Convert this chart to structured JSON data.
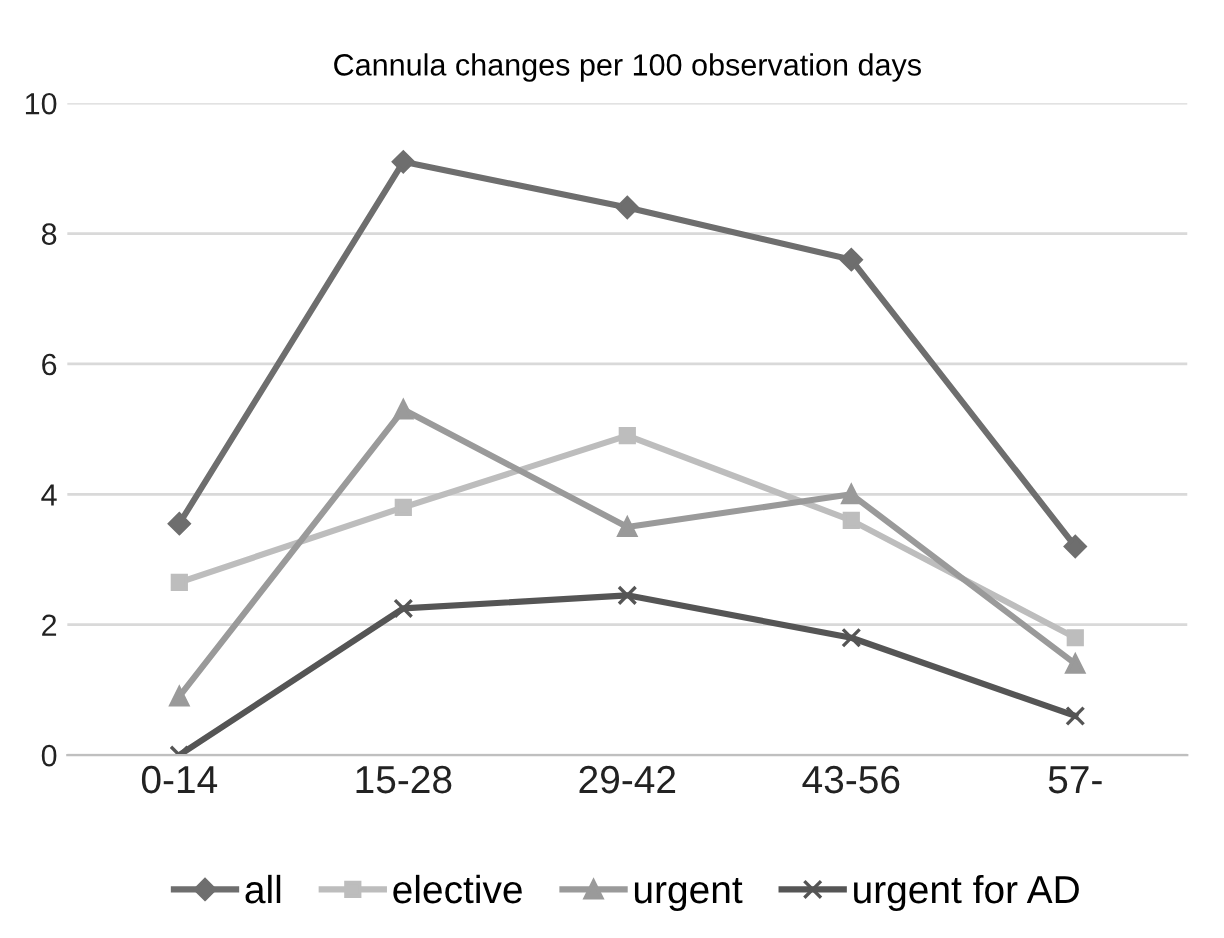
{
  "chart_data": {
    "type": "line",
    "title": "Cannula changes per 100 observation days",
    "categories": [
      "0-14",
      "15-28",
      "29-42",
      "43-56",
      "57-"
    ],
    "series": [
      {
        "name": "all",
        "color": "#6e6e6e",
        "marker": "diamond",
        "values": [
          3.55,
          9.1,
          8.4,
          7.6,
          3.2
        ]
      },
      {
        "name": "elective",
        "color": "#bdbdbd",
        "marker": "square",
        "values": [
          2.65,
          3.8,
          4.9,
          3.6,
          1.8
        ]
      },
      {
        "name": "urgent",
        "color": "#9a9a9a",
        "marker": "triangle",
        "values": [
          0.9,
          5.3,
          3.5,
          4.0,
          1.4
        ]
      },
      {
        "name": "urgent for AD",
        "color": "#555555",
        "marker": "cross",
        "values": [
          0,
          2.25,
          2.45,
          1.8,
          0.6
        ]
      }
    ],
    "ylim": [
      0,
      10
    ],
    "yticks": [
      0,
      2,
      4,
      6,
      8,
      10
    ],
    "grid": "y",
    "legend": "bottom",
    "line_style": "solid"
  }
}
